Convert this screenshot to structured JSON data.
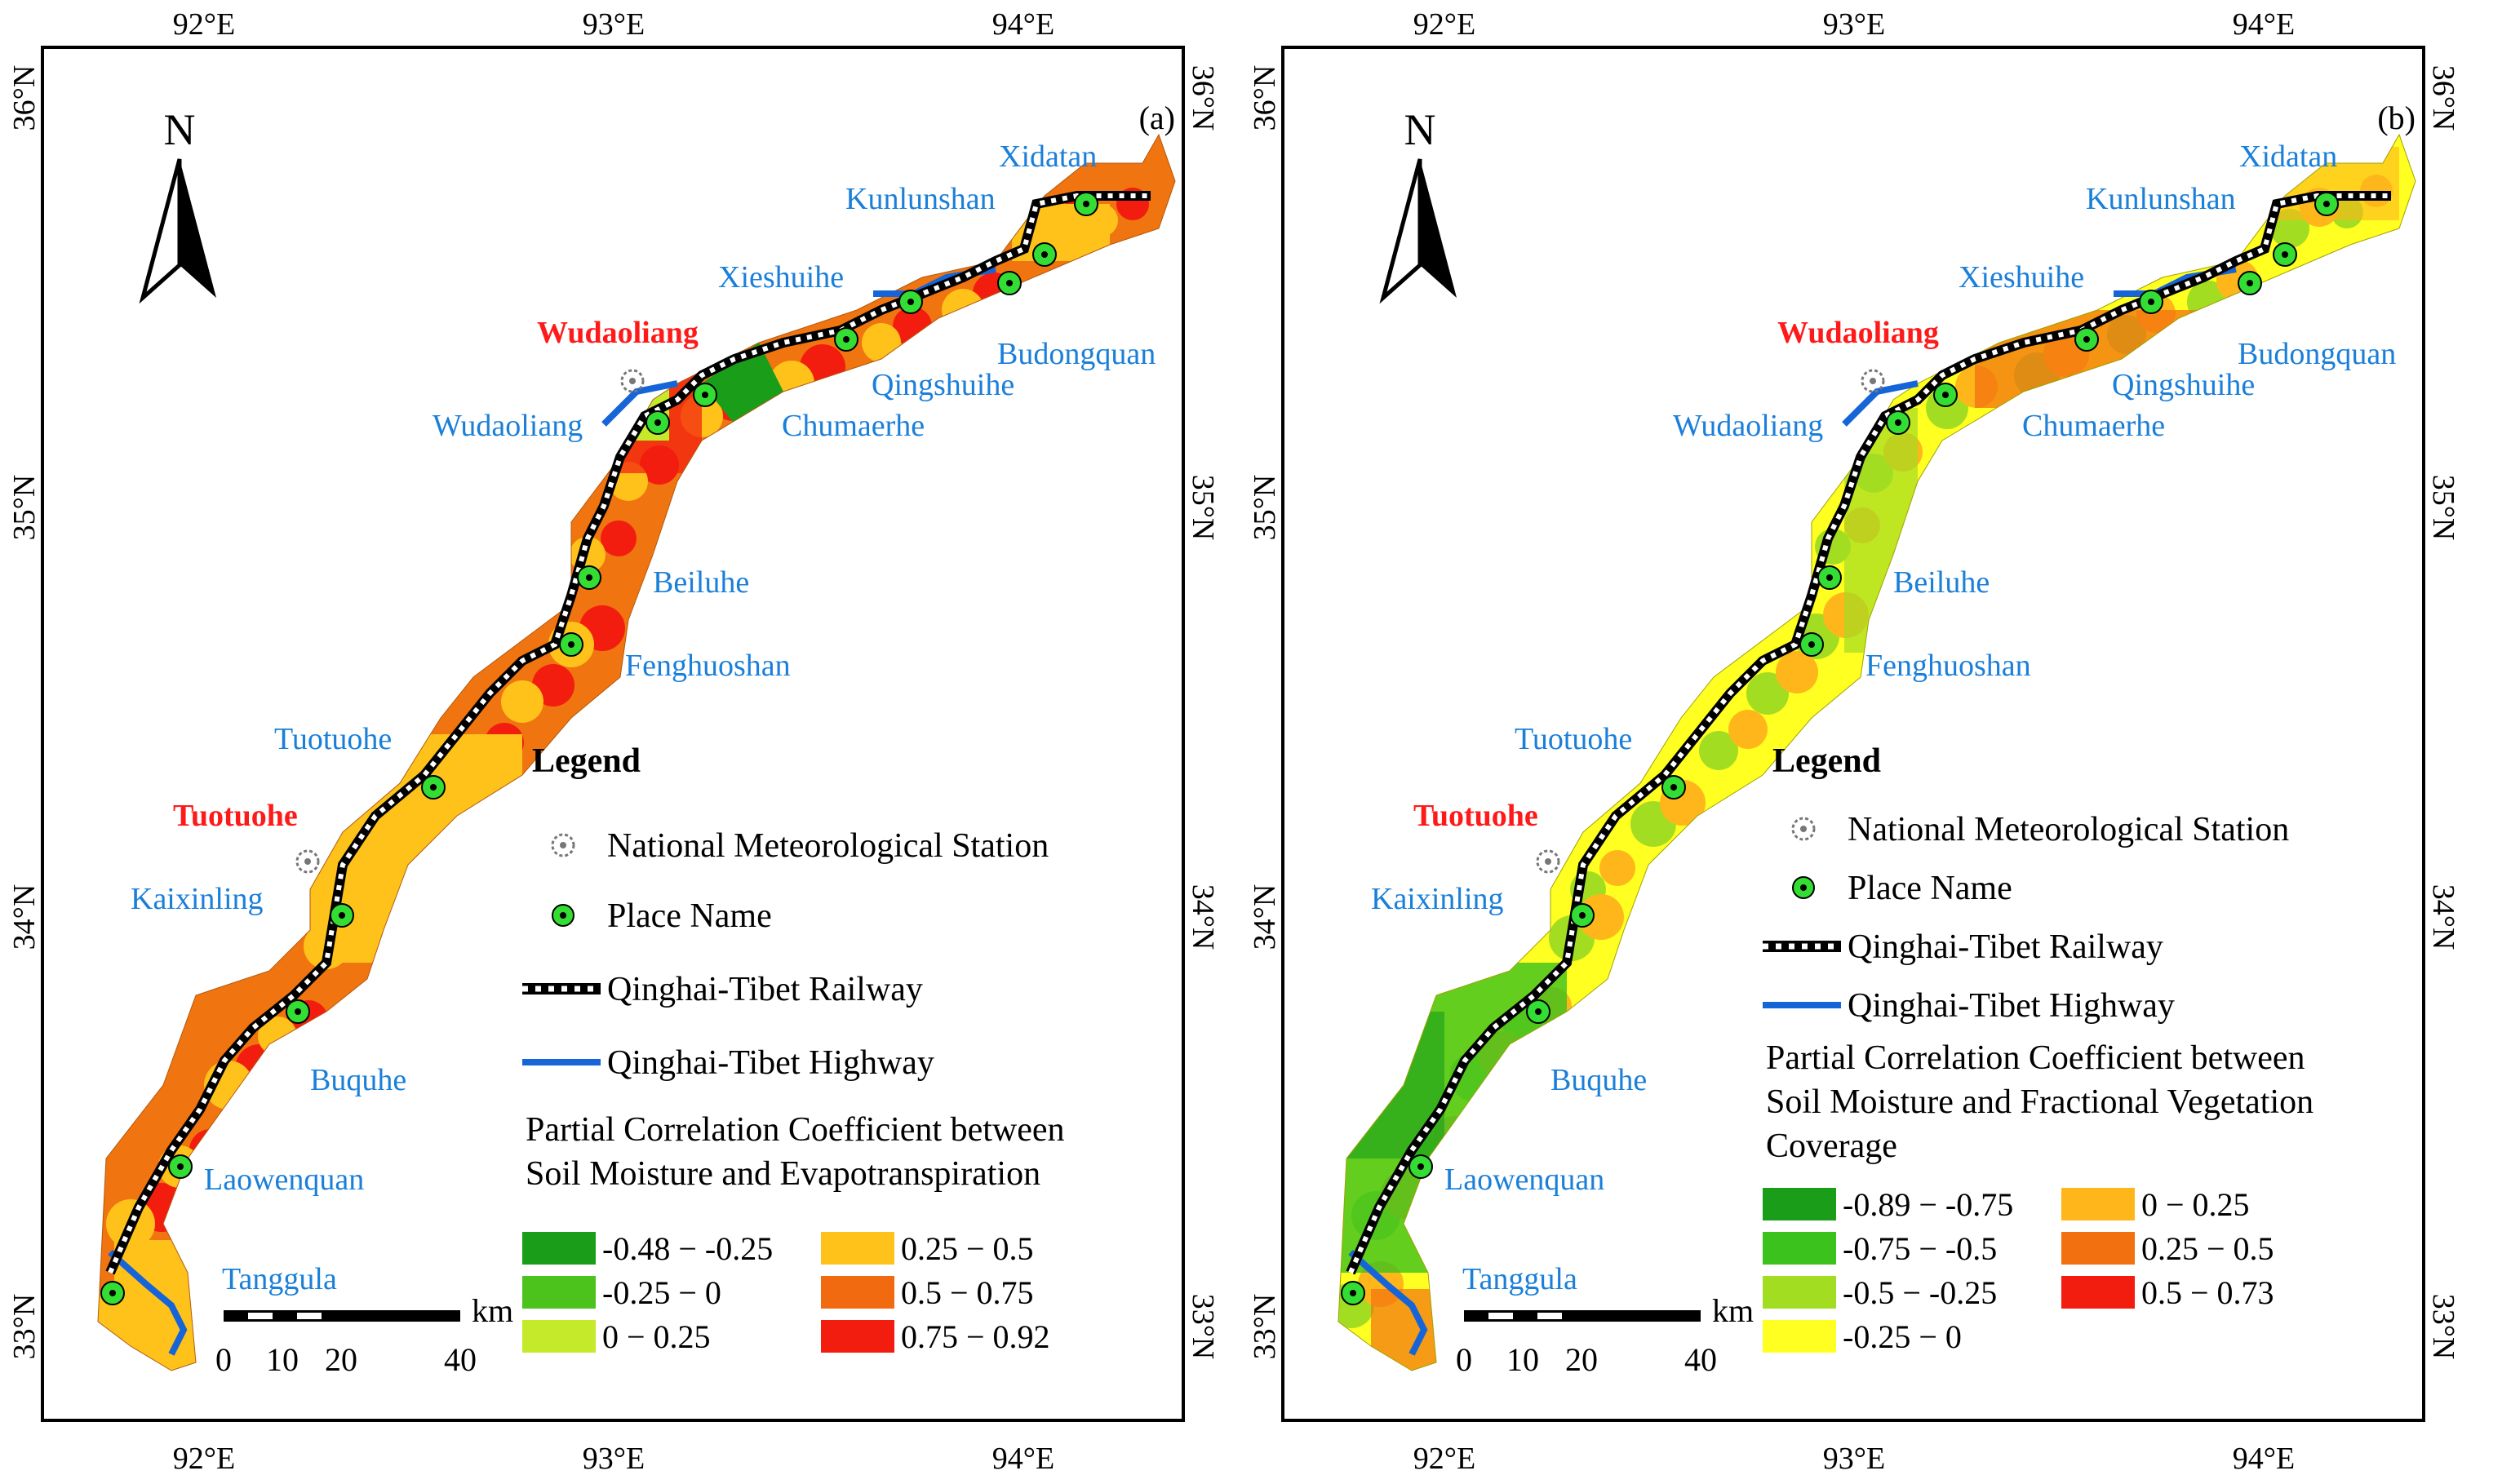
{
  "figure": "Partial correlation maps along the Qinghai-Tibet Railway corridor",
  "axes": {
    "top_ticks": [
      "92°E",
      "93°E",
      "94°E"
    ],
    "bottom_ticks": [
      "92°E",
      "93°E",
      "94°E"
    ],
    "left_ticks": [
      "36°N",
      "35°N",
      "34°N",
      "33°N"
    ],
    "right_ticks": [
      "36°N",
      "35°N",
      "34°N",
      "33°N"
    ]
  },
  "north_arrow": "N",
  "places": {
    "xidatan": "Xidatan",
    "kunlunshan": "Kunlunshan",
    "xieshuihe": "Xieshuihe",
    "budongquan": "Budongquan",
    "qingshuihe": "Qingshuihe",
    "chumaerhe": "Chumaerhe",
    "wudaoliang": "Wudaoliang",
    "beiluhe": "Beiluhe",
    "fenghuoshan": "Fenghuoshan",
    "tuotuohe": "Tuotuohe",
    "kaixinling": "Kaixinling",
    "buquhe": "Buquhe",
    "laowenquan": "Laowenquan",
    "tanggula": "Tanggula"
  },
  "stations": {
    "wudaoliang": "Wudaoliang",
    "tuotuohe": "Tuotuohe"
  },
  "scale_bar": {
    "unit": "km",
    "labels": [
      "0",
      "10",
      "20",
      "40"
    ]
  },
  "legend": {
    "title": "Legend",
    "station": "National Meteorological Station",
    "place": "Place Name",
    "railway": "Qinghai-Tibet Railway",
    "highway": "Qinghai-Tibet Highway"
  },
  "panel_a": {
    "tag": "(a)",
    "pcc_title_lines": [
      "Partial Correlation Coefficient between",
      "Soil Moisture and Evapotranspiration"
    ],
    "classes": [
      {
        "label": "-0.48 − -0.25",
        "color": "#1a9e1a"
      },
      {
        "label": "-0.25 − 0",
        "color": "#4cc21d"
      },
      {
        "label": "0 − 0.25",
        "color": "#c5ea2a"
      },
      {
        "label": "0.25 − 0.5",
        "color": "#ffc21a"
      },
      {
        "label": "0.5 − 0.75",
        "color": "#f26a0f"
      },
      {
        "label": "0.75 − 0.92",
        "color": "#f21d0f"
      }
    ]
  },
  "panel_b": {
    "tag": "(b)",
    "pcc_title_lines": [
      "Partial Correlation Coefficient between",
      "Soil Moisture and Fractional Vegetation",
      "Coverage"
    ],
    "classes": [
      {
        "label": "-0.89 − -0.75",
        "color": "#1a9e1a"
      },
      {
        "label": "-0.75 − -0.5",
        "color": "#3cc21d"
      },
      {
        "label": "-0.5 − -0.25",
        "color": "#a3dd22"
      },
      {
        "label": "-0.25 − 0",
        "color": "#ffff22"
      },
      {
        "label": "0 − 0.25",
        "color": "#ffb61a"
      },
      {
        "label": "0.25 − 0.5",
        "color": "#f2700f"
      },
      {
        "label": "0.5 − 0.73",
        "color": "#f21d0f"
      }
    ]
  }
}
